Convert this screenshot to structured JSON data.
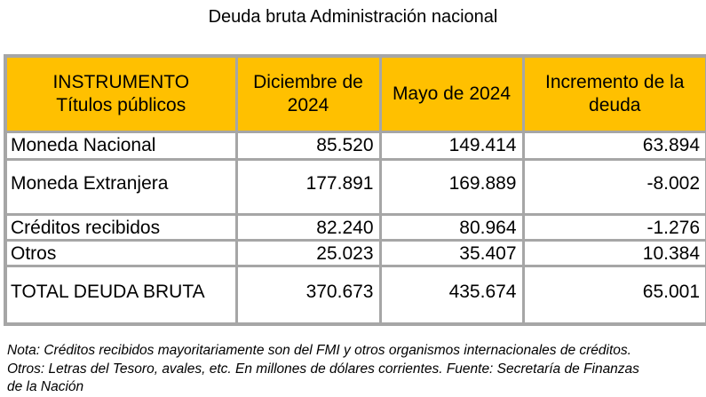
{
  "title": "Deuda bruta Administración nacional",
  "headers": {
    "instrument_line1": "INSTRUMENTO",
    "instrument_line2": "Títulos públicos",
    "col1": "Diciembre de 2024",
    "col2": "Mayo de 2024",
    "col3": "Incremento de la deuda"
  },
  "rows": [
    {
      "label": "Moneda Nacional",
      "dec": "85.520",
      "may": "149.414",
      "inc": "63.894"
    },
    {
      "label": "Moneda Extranjera",
      "dec": "177.891",
      "may": "169.889",
      "inc": "-8.002"
    },
    {
      "label": "Créditos recibidos",
      "dec": "82.240",
      "may": "80.964",
      "inc": "-1.276"
    },
    {
      "label": "Otros",
      "dec": "25.023",
      "may": "35.407",
      "inc": "10.384"
    },
    {
      "label": "TOTAL DEUDA BRUTA",
      "dec": "370.673",
      "may": "435.674",
      "inc": "65.001"
    }
  ],
  "notes": [
    "Nota: Créditos recibidos mayoritariamente son del FMI y otros organismos internacionales de créditos.",
    "Otros: Letras del Tesoro, avales, etc. En millones de dólares corrientes. Fuente: Secretaría de Finanzas",
    "de la Nación"
  ],
  "colors": {
    "header_bg": "#ffc000",
    "border": "#a6a6a6"
  }
}
